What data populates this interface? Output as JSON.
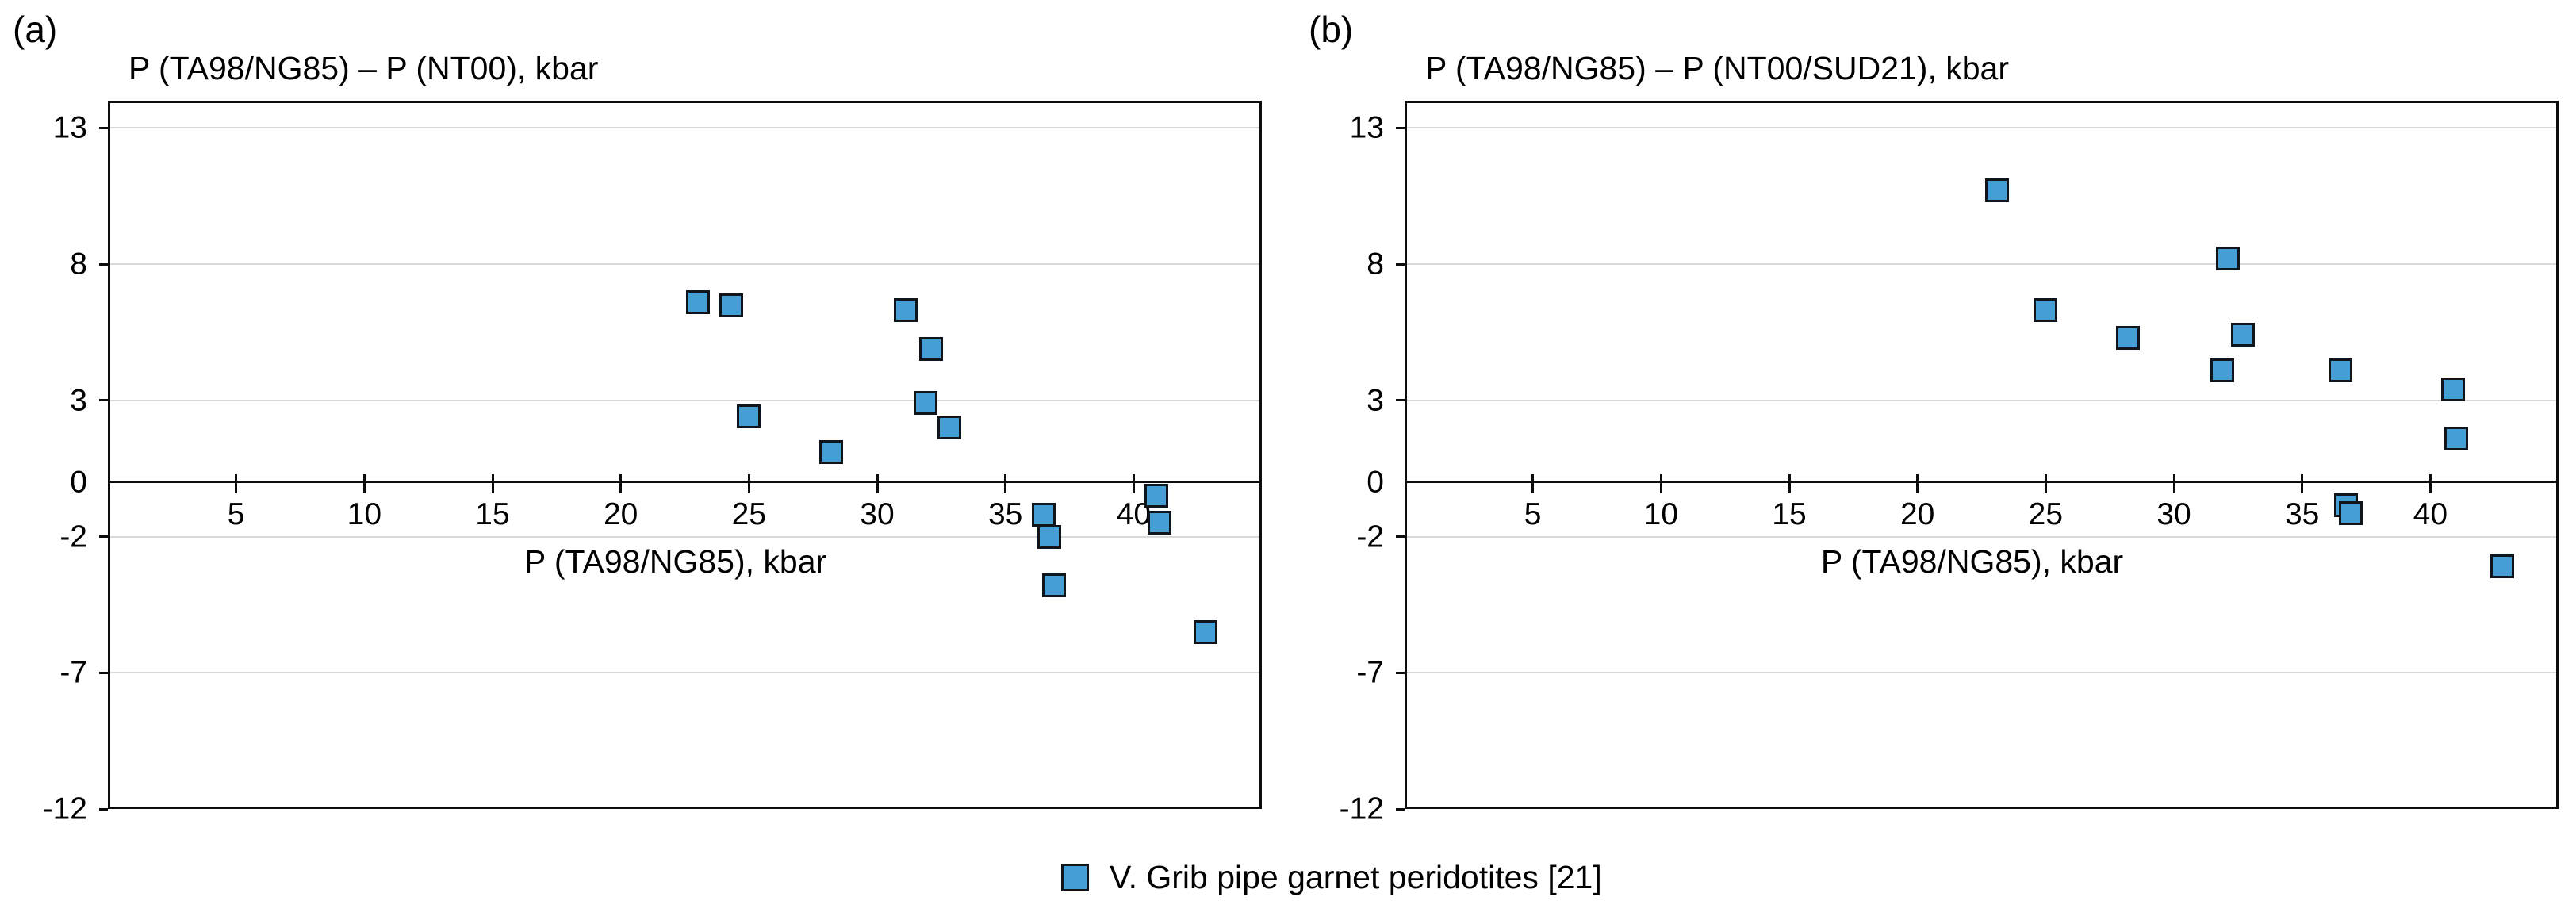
{
  "figure": {
    "background": "#ffffff",
    "legend": {
      "marker": "blue-square-marker",
      "label": "V. Grib pipe garnet peridotites [21]"
    }
  },
  "axes_shared": {
    "xlim": [
      0,
      45
    ],
    "ylim": [
      -12,
      14
    ],
    "xticks": [
      5,
      10,
      15,
      20,
      25,
      30,
      35,
      40
    ],
    "yticks": [
      13,
      8,
      3,
      0,
      -2,
      -7,
      -12
    ],
    "gridlines_y": [
      13,
      8,
      3,
      -2,
      -7
    ],
    "grid": "horizontal-only",
    "zero_axis": true,
    "legend_position": "bottom-center"
  },
  "colors": {
    "marker_fill": "#459fd4",
    "marker_border": "#10141b",
    "axis": "#0d0d0d",
    "gridline": "#d9d9d9",
    "text": "#000000",
    "background": "#ffffff"
  },
  "chart_data": [
    {
      "type": "scatter",
      "panel_label": "(a)",
      "title": "P (TA98/NG85) – P (NT00), kbar",
      "xlabel": "P (TA98/NG85), kbar",
      "ylabel": "",
      "xlim": [
        0,
        45
      ],
      "ylim": [
        -12,
        14
      ],
      "series": [
        {
          "name": "V. Grib pipe garnet peridotites [21]",
          "marker": "square",
          "points": [
            [
              23.0,
              6.6
            ],
            [
              24.3,
              6.5
            ],
            [
              31.1,
              6.3
            ],
            [
              32.1,
              4.9
            ],
            [
              25.0,
              2.4
            ],
            [
              28.2,
              1.1
            ],
            [
              31.9,
              2.9
            ],
            [
              32.8,
              2.0
            ],
            [
              36.5,
              -1.2
            ],
            [
              36.7,
              -2.0
            ],
            [
              40.9,
              -0.5
            ],
            [
              41.0,
              -1.5
            ],
            [
              36.9,
              -3.8
            ],
            [
              42.8,
              -5.5
            ]
          ]
        }
      ]
    },
    {
      "type": "scatter",
      "panel_label": "(b)",
      "title": "P (TA98/NG85) – P (NT00/SUD21), kbar",
      "xlabel": "P (TA98/NG85), kbar",
      "ylabel": "",
      "xlim": [
        0,
        45
      ],
      "ylim": [
        -12,
        14
      ],
      "series": [
        {
          "name": "V. Grib pipe garnet peridotites [21]",
          "marker": "square",
          "points": [
            [
              23.1,
              10.7
            ],
            [
              25.0,
              6.3
            ],
            [
              28.2,
              5.3
            ],
            [
              32.1,
              8.2
            ],
            [
              32.7,
              5.4
            ],
            [
              31.9,
              4.1
            ],
            [
              36.5,
              4.1
            ],
            [
              40.9,
              3.4
            ],
            [
              41.0,
              1.6
            ],
            [
              36.7,
              -0.85
            ],
            [
              36.9,
              -1.15
            ],
            [
              42.8,
              -3.1
            ]
          ]
        }
      ]
    }
  ]
}
